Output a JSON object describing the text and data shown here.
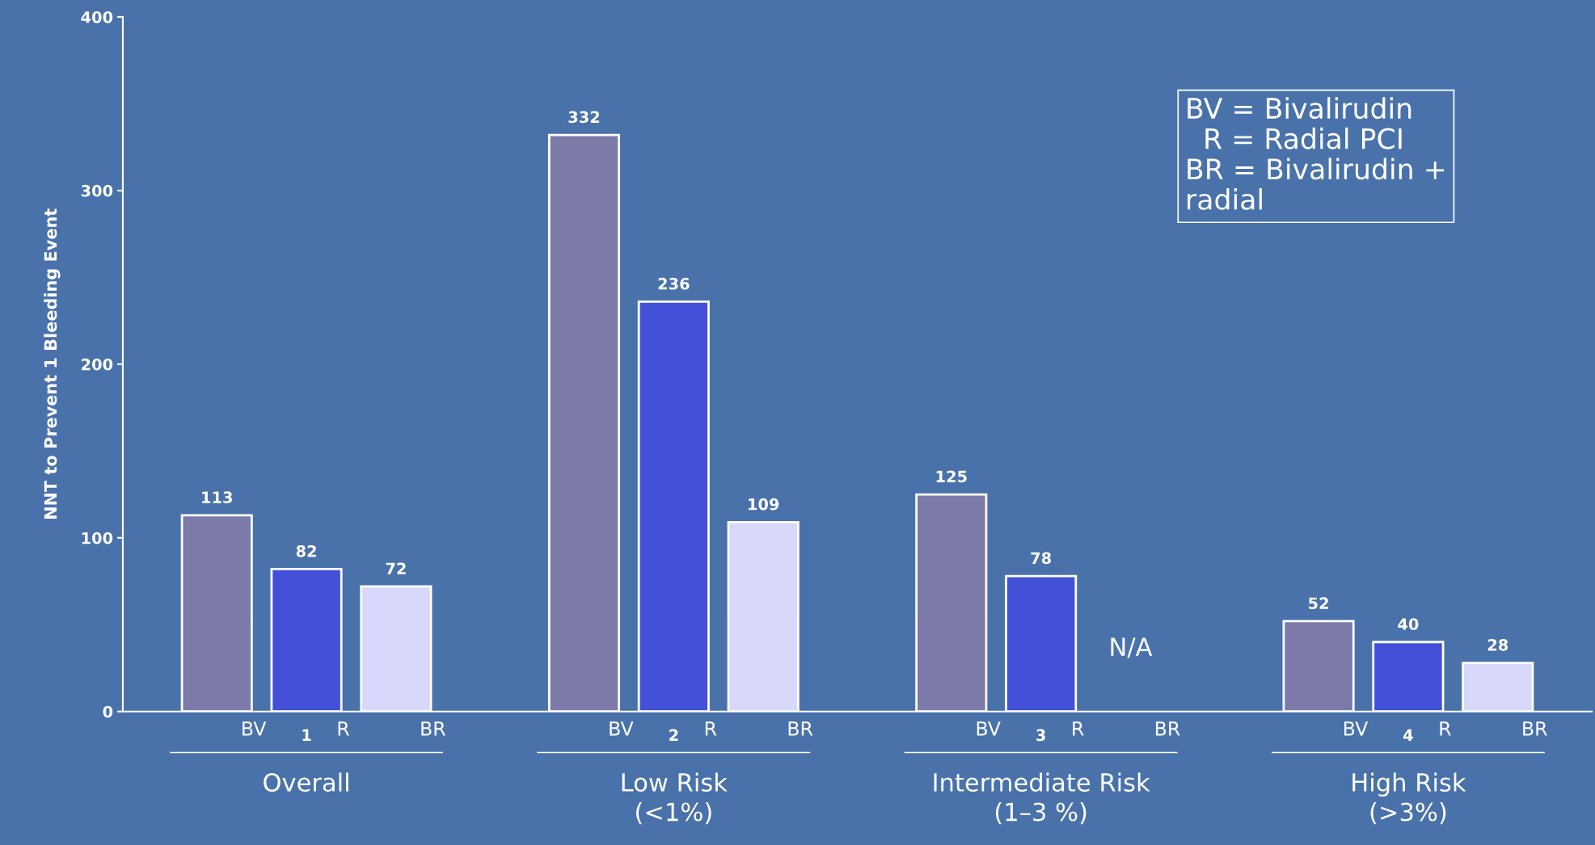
{
  "chart_data": {
    "type": "bar",
    "ylabel": "NNT to Prevent 1 Bleeding Event",
    "categories": [
      "Overall",
      "Low Risk\n(<1%)",
      "Intermediate Risk\n(1–3 %)",
      "High Risk\n(>3%)"
    ],
    "series": [
      {
        "name": "BV",
        "color": "#7b7aa8",
        "values": [
          113,
          332,
          125,
          52
        ]
      },
      {
        "name": "R",
        "color": "#4450d8",
        "values": [
          82,
          236,
          78,
          40
        ]
      },
      {
        "name": "BR",
        "color": "#d8d8fa",
        "values": [
          72,
          109,
          null,
          28
        ]
      }
    ],
    "ylim": [
      0,
      400
    ],
    "yticks": [
      0,
      100,
      200,
      300,
      400
    ],
    "grid": false,
    "data_labels": true,
    "annotations": [
      "BV = Bivalirudin\n  R = Radial PCI\nBR = Bivalirudin +\nradial",
      "1",
      "2",
      "3",
      "4",
      "N/A"
    ]
  }
}
